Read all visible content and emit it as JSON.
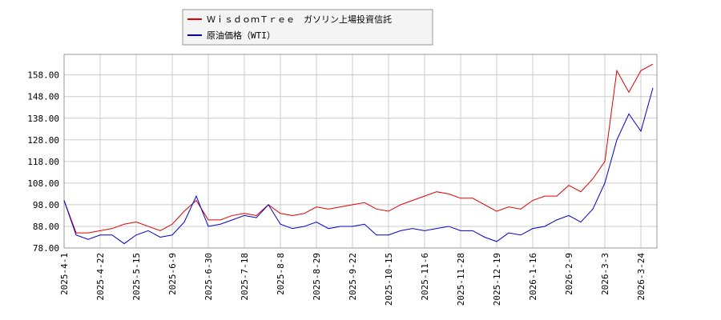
{
  "chart_data": {
    "type": "line",
    "categories": [
      "2025-4-1",
      null,
      null,
      "2025-4-22",
      null,
      null,
      "2025-5-15",
      null,
      null,
      "2025-6-9",
      null,
      null,
      "2025-6-30",
      null,
      null,
      "2025-7-18",
      null,
      null,
      "2025-8-8",
      null,
      null,
      "2025-8-29",
      null,
      null,
      "2025-9-22",
      null,
      null,
      "2025-10-15",
      null,
      null,
      "2025-11-6",
      null,
      null,
      "2025-11-28",
      null,
      null,
      "2025-12-19",
      null,
      null,
      "2026-1-16",
      null,
      null,
      "2026-2-9",
      null,
      null,
      "2026-3-3",
      null,
      null,
      "2026-3-24",
      null
    ],
    "series": [
      {
        "name": "ＷｉｓｄｏｍＴｒｅｅ　ガソリン上場投資信託",
        "color": "#e00000",
        "values": [
          100,
          85,
          85,
          86,
          87,
          89,
          90,
          88,
          86,
          89,
          95,
          100,
          91,
          91,
          93,
          94,
          93,
          98,
          94,
          93,
          94,
          97,
          96,
          97,
          98,
          99,
          96,
          95,
          98,
          100,
          102,
          104,
          103,
          101,
          101,
          98,
          95,
          97,
          96,
          100,
          102,
          102,
          107,
          104,
          110,
          118,
          160,
          150,
          160,
          163
        ]
      },
      {
        "name": "原油価格（WTI）",
        "color": "#0000cc",
        "values": [
          100,
          84,
          82,
          84,
          84,
          80,
          84,
          86,
          83,
          84,
          90,
          102,
          88,
          89,
          91,
          93,
          92,
          98,
          89,
          87,
          88,
          90,
          87,
          88,
          88,
          89,
          84,
          84,
          86,
          87,
          86,
          87,
          88,
          86,
          86,
          83,
          81,
          85,
          84,
          87,
          88,
          91,
          93,
          90,
          96,
          108,
          128,
          140,
          132,
          152
        ]
      }
    ],
    "ylim": [
      78,
      167.5
    ],
    "yticks": [
      {
        "value": 78,
        "label": "78.00"
      },
      {
        "value": 88,
        "label": "88.00"
      },
      {
        "value": 98,
        "label": "98.00"
      },
      {
        "value": 108,
        "label": "108.00"
      },
      {
        "value": 118,
        "label": "118.00"
      },
      {
        "value": 128,
        "label": "128.00"
      },
      {
        "value": 138,
        "label": "138.00"
      },
      {
        "value": 148,
        "label": "148.00"
      },
      {
        "value": 158,
        "label": "158.00"
      }
    ],
    "grid": true
  }
}
